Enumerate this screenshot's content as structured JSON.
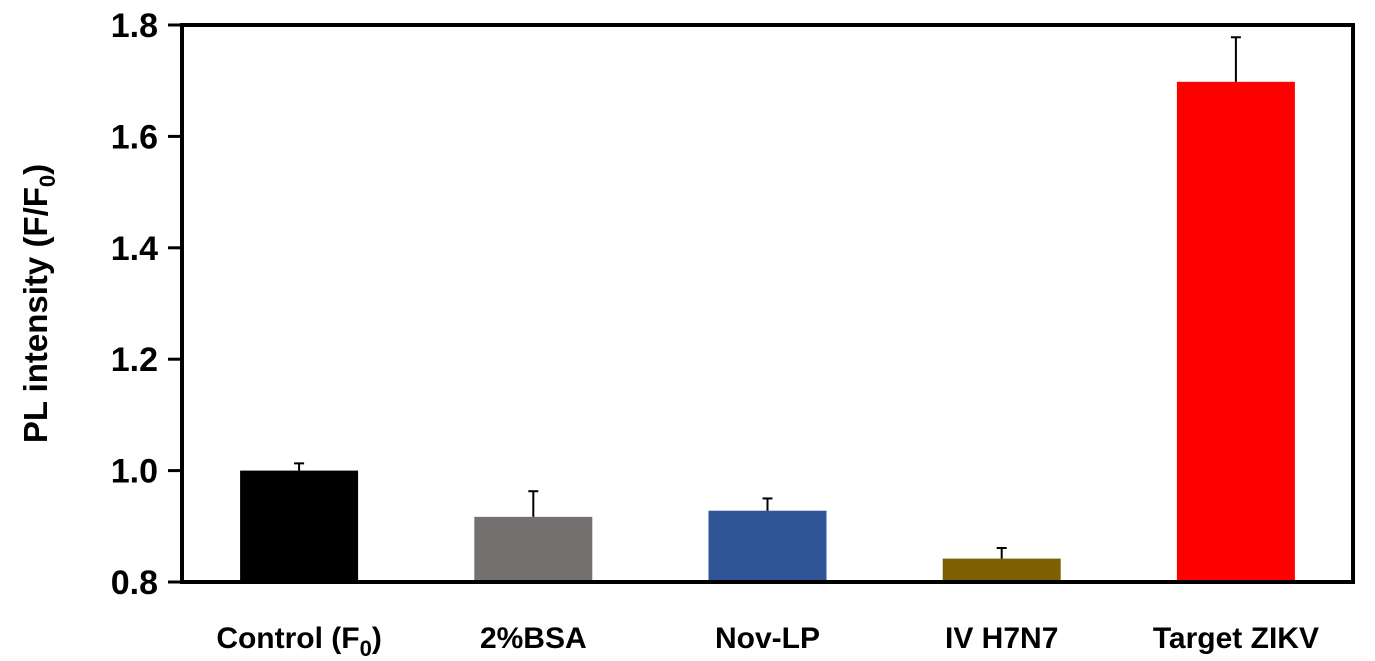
{
  "chart_data": {
    "type": "bar",
    "title": "",
    "xlabel": "",
    "ylabel": {
      "main": "PL intensity (F/F",
      "subscript": "0",
      "suffix": ")"
    },
    "ylim": [
      0.8,
      1.8
    ],
    "yticks": [
      "0.8",
      "1.0",
      "1.2",
      "1.4",
      "1.6",
      "1.8"
    ],
    "grid": false,
    "legend": "none",
    "categories": [
      {
        "label": "Control (F",
        "subscript": "0",
        "suffix": ")"
      },
      {
        "label": "2%BSA",
        "subscript": "",
        "suffix": ""
      },
      {
        "label": "Nov-LP",
        "subscript": "",
        "suffix": ""
      },
      {
        "label": "IV H7N7",
        "subscript": "",
        "suffix": ""
      },
      {
        "label": "Target ZIKV",
        "subscript": "",
        "suffix": ""
      }
    ],
    "values": [
      1.0,
      0.917,
      0.928,
      0.842,
      1.698
    ],
    "errors": [
      0.013,
      0.046,
      0.022,
      0.019,
      0.08
    ],
    "colors": [
      "#000000",
      "#767171",
      "#2F5597",
      "#7F6000",
      "#FF0000"
    ]
  }
}
